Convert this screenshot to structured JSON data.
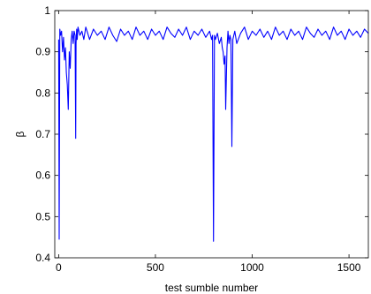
{
  "chart_data": {
    "type": "line",
    "title": "",
    "xlabel": "test sumble number",
    "ylabel": "β",
    "xlim": [
      -20,
      1600
    ],
    "ylim": [
      0.4,
      1.0
    ],
    "xticks": [
      0,
      500,
      1000,
      1500
    ],
    "xtick_labels": [
      "0",
      "500",
      "1000",
      "1500"
    ],
    "yticks": [
      0.4,
      0.5,
      0.6,
      0.7,
      0.8,
      0.9,
      1.0
    ],
    "ytick_labels": [
      "0.4",
      "0.5",
      "0.6",
      "0.7",
      "0.8",
      "0.9",
      "1"
    ],
    "grid": false,
    "line_color": "#0000ff",
    "series": [
      {
        "x": [
          0,
          3,
          6,
          10,
          15,
          20,
          25,
          30,
          35,
          40,
          45,
          50,
          55,
          60,
          65,
          70,
          75,
          80,
          85,
          88,
          90,
          93,
          96,
          100,
          110,
          120,
          130,
          140,
          150,
          160,
          180,
          200,
          220,
          240,
          260,
          280,
          300,
          320,
          340,
          360,
          380,
          400,
          420,
          440,
          460,
          480,
          500,
          520,
          540,
          560,
          580,
          600,
          620,
          640,
          660,
          680,
          700,
          720,
          740,
          760,
          780,
          790,
          795,
          800,
          805,
          810,
          820,
          830,
          840,
          845,
          850,
          855,
          860,
          863,
          866,
          870,
          875,
          880,
          885,
          890,
          895,
          900,
          910,
          920,
          940,
          960,
          980,
          1000,
          1020,
          1040,
          1060,
          1080,
          1100,
          1120,
          1140,
          1160,
          1180,
          1200,
          1220,
          1240,
          1260,
          1280,
          1300,
          1320,
          1340,
          1360,
          1380,
          1400,
          1420,
          1440,
          1460,
          1480,
          1500,
          1520,
          1540,
          1560,
          1580,
          1600
        ],
        "y": [
          0.93,
          0.445,
          0.955,
          0.94,
          0.95,
          0.9,
          0.935,
          0.88,
          0.91,
          0.85,
          0.82,
          0.76,
          0.9,
          0.86,
          0.93,
          0.95,
          0.92,
          0.95,
          0.94,
          0.69,
          0.92,
          0.955,
          0.93,
          0.96,
          0.94,
          0.95,
          0.93,
          0.96,
          0.945,
          0.93,
          0.955,
          0.94,
          0.95,
          0.93,
          0.96,
          0.94,
          0.925,
          0.955,
          0.94,
          0.95,
          0.93,
          0.96,
          0.94,
          0.95,
          0.93,
          0.955,
          0.94,
          0.95,
          0.93,
          0.96,
          0.945,
          0.935,
          0.955,
          0.94,
          0.96,
          0.93,
          0.95,
          0.94,
          0.955,
          0.935,
          0.95,
          0.93,
          0.94,
          0.44,
          0.94,
          0.93,
          0.945,
          0.92,
          0.935,
          0.91,
          0.9,
          0.87,
          0.89,
          0.76,
          0.83,
          0.91,
          0.95,
          0.92,
          0.94,
          0.93,
          0.67,
          0.93,
          0.95,
          0.92,
          0.945,
          0.96,
          0.93,
          0.95,
          0.94,
          0.955,
          0.935,
          0.95,
          0.93,
          0.96,
          0.94,
          0.95,
          0.93,
          0.955,
          0.94,
          0.95,
          0.93,
          0.96,
          0.945,
          0.935,
          0.955,
          0.94,
          0.95,
          0.93,
          0.96,
          0.94,
          0.95,
          0.93,
          0.955,
          0.94,
          0.95,
          0.935,
          0.955,
          0.945
        ]
      }
    ]
  }
}
